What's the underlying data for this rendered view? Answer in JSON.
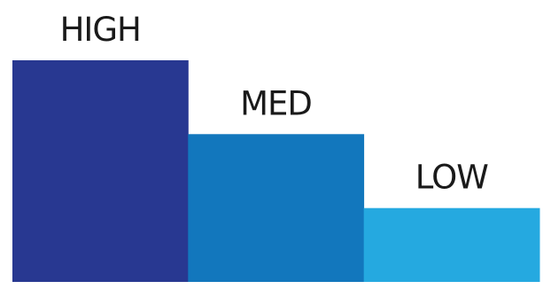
{
  "chart_data": {
    "type": "bar",
    "categories": [
      "HIGH",
      "MED",
      "LOW"
    ],
    "values": [
      3,
      2,
      1
    ],
    "ylim": [
      0,
      3
    ],
    "grid": false,
    "colors": [
      "#283891",
      "#1277bd",
      "#25a9e0"
    ]
  }
}
